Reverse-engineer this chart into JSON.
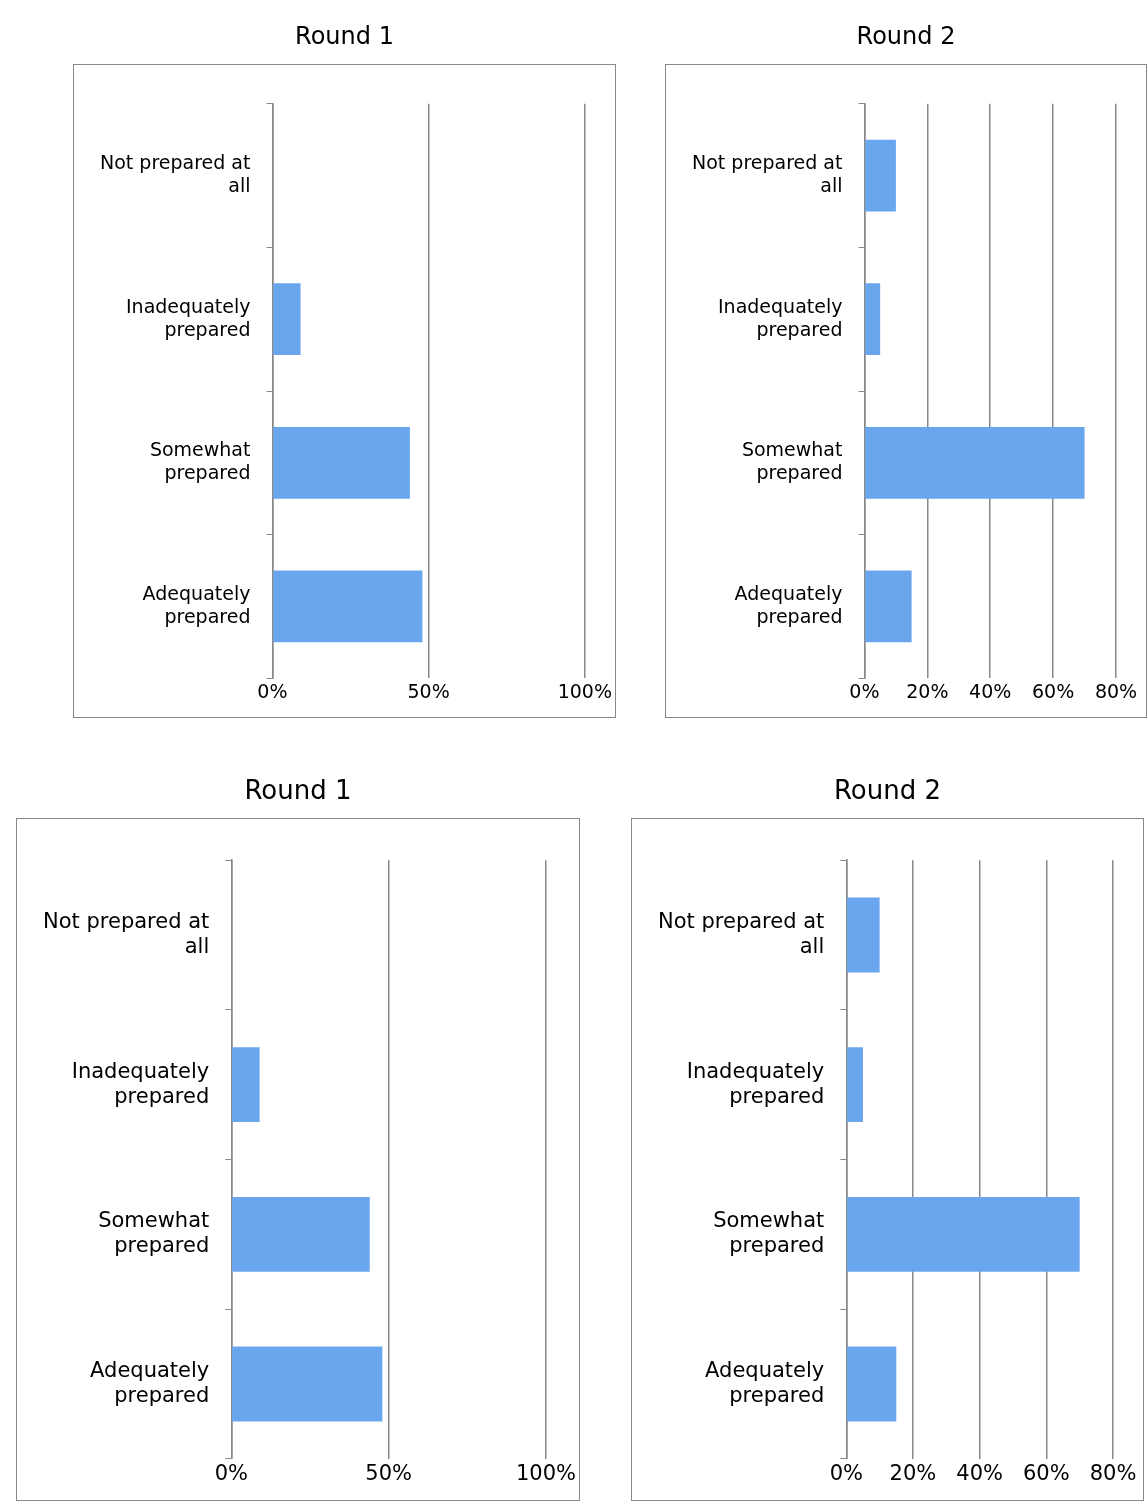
{
  "chart_data": [
    {
      "type": "bar",
      "orientation": "horizontal",
      "title": "Round 1",
      "categories": [
        "Not prepared at all",
        "Inadequately prepared",
        "Somewhat prepared",
        "Adequately prepared"
      ],
      "values": [
        0,
        9,
        44,
        48
      ],
      "color": "#6aa6ee",
      "xlim": [
        0,
        100
      ],
      "xticks": [
        {
          "value": 0,
          "label": "0%"
        },
        {
          "value": 50,
          "label": "50%"
        },
        {
          "value": 100,
          "label": "100%"
        }
      ],
      "grid": "x",
      "legend": false
    },
    {
      "type": "bar",
      "orientation": "horizontal",
      "title": "Round 2",
      "categories": [
        "Not prepared at all",
        "Inadequately prepared",
        "Somewhat prepared",
        "Adequately prepared"
      ],
      "values": [
        10,
        5,
        70,
        15
      ],
      "color": "#6aa6ee",
      "xlim": [
        0,
        80
      ],
      "xticks": [
        {
          "value": 0,
          "label": "0%"
        },
        {
          "value": 20,
          "label": "20%"
        },
        {
          "value": 40,
          "label": "40%"
        },
        {
          "value": 60,
          "label": "60%"
        },
        {
          "value": 80,
          "label": "80%"
        }
      ],
      "grid": "x",
      "legend": false
    },
    {
      "type": "bar",
      "orientation": "horizontal",
      "title": "Round 1",
      "categories": [
        "Not prepared at all",
        "Inadequately prepared",
        "Somewhat prepared",
        "Adequately prepared"
      ],
      "values": [
        0,
        9,
        44,
        48
      ],
      "color": "#6aa6ee",
      "xlim": [
        0,
        100
      ],
      "xticks": [
        {
          "value": 0,
          "label": "0%"
        },
        {
          "value": 50,
          "label": "50%"
        },
        {
          "value": 100,
          "label": "100%"
        }
      ],
      "grid": "x",
      "legend": false
    },
    {
      "type": "bar",
      "orientation": "horizontal",
      "title": "Round 2",
      "categories": [
        "Not prepared at all",
        "Inadequately prepared",
        "Somewhat prepared",
        "Adequately prepared"
      ],
      "values": [
        10,
        5,
        70,
        15
      ],
      "color": "#6aa6ee",
      "xlim": [
        0,
        80
      ],
      "xticks": [
        {
          "value": 0,
          "label": "0%"
        },
        {
          "value": 20,
          "label": "20%"
        },
        {
          "value": 40,
          "label": "40%"
        },
        {
          "value": 60,
          "label": "60%"
        },
        {
          "value": 80,
          "label": "80%"
        }
      ],
      "grid": "x",
      "legend": false
    }
  ]
}
